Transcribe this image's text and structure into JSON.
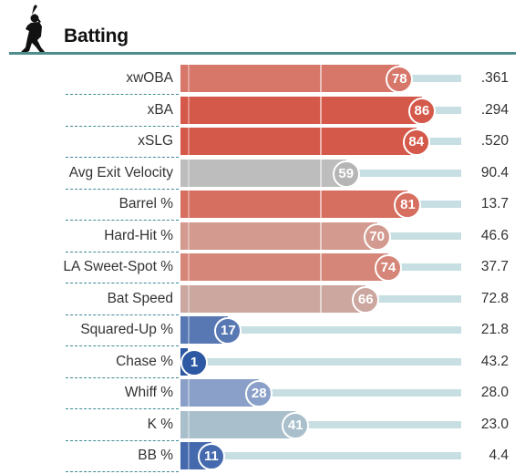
{
  "section": {
    "title": "Batting",
    "icon": "batter-silhouette-icon",
    "header_line_color": "#4f8c8c"
  },
  "chart_data": {
    "type": "bar",
    "orientation": "horizontal",
    "xlim": [
      0,
      100
    ],
    "gridlines_at": [
      50
    ],
    "categories": [
      "xwOBA",
      "xBA",
      "xSLG",
      "Avg Exit Velocity",
      "Barrel %",
      "Hard-Hit %",
      "LA Sweet-Spot %",
      "Bat Speed",
      "Squared-Up %",
      "Chase %",
      "Whiff %",
      "K %",
      "BB %"
    ],
    "percentiles": [
      78,
      86,
      84,
      59,
      81,
      70,
      74,
      66,
      17,
      1,
      28,
      41,
      11
    ],
    "stat_values": [
      ".361",
      ".294",
      ".520",
      "90.4",
      "13.7",
      "46.6",
      "37.7",
      "72.8",
      "21.8",
      "43.2",
      "28.0",
      "23.0",
      "4.4"
    ],
    "bar_colors": [
      "#d6776a",
      "#d5594b",
      "#d5594b",
      "#bdbdbd",
      "#d66f60",
      "#d39a90",
      "#d68678",
      "#cba7a0",
      "#5878b4",
      "#2d58a3",
      "#8aa0c8",
      "#a9bfcb",
      "#4469ad"
    ],
    "badge_colors": [
      "#d6776a",
      "#d5594b",
      "#d5594b",
      "#b5b5b5",
      "#d66f60",
      "#d39a90",
      "#d68678",
      "#cba7a0",
      "#5878b4",
      "#2d58a3",
      "#8aa0c8",
      "#a9bfcb",
      "#4469ad"
    ],
    "track_color": "#c7dfe2",
    "separator_color": "#3d8a96"
  }
}
